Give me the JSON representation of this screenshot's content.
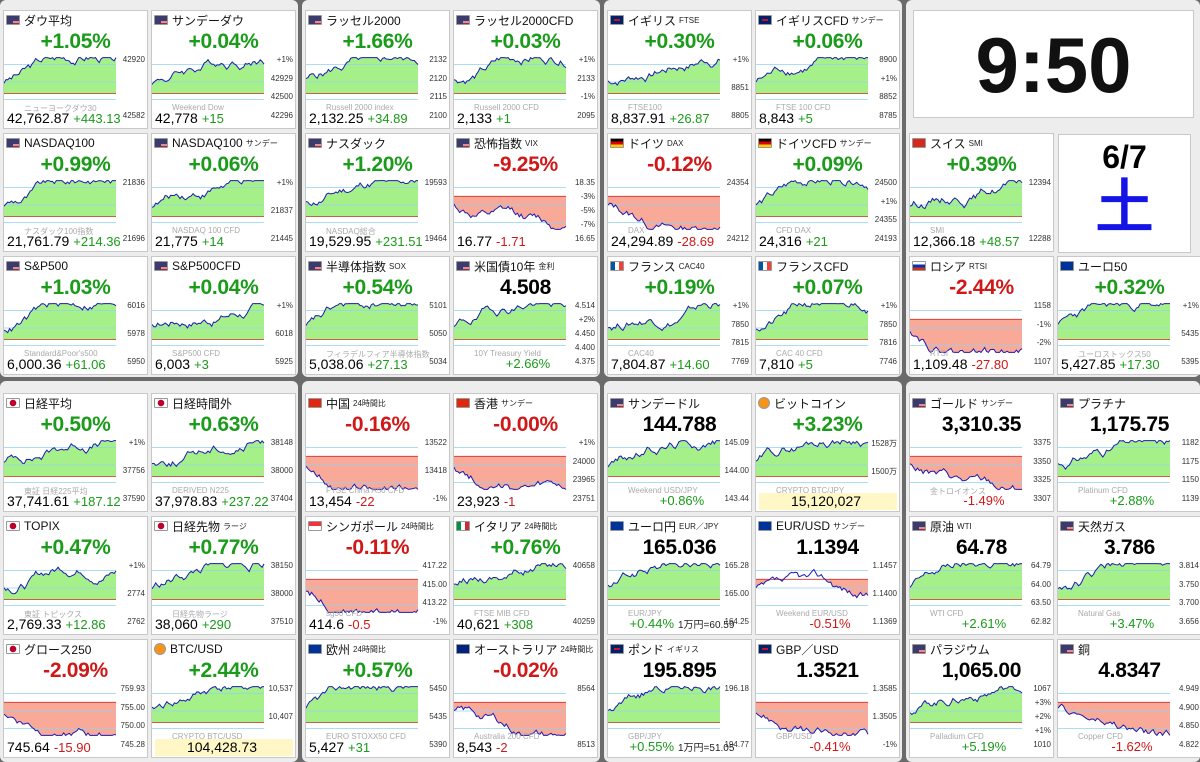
{
  "colors": {
    "up": "#1a9b1a",
    "down": "#d01818",
    "up_fill": "#a6f08a",
    "down_fill": "#f9a998",
    "line": "#1a1ab4",
    "weekday": "#1414e6"
  },
  "clock": {
    "time": "9:50",
    "date": "6/7",
    "weekday": "土"
  },
  "cards": [
    {
      "flag": "us",
      "name": "ダウ平均",
      "sub": "",
      "change": "+1.05%",
      "dir": "up",
      "price": "42,762.87",
      "diff": "+443.13",
      "ticks": [
        "42920",
        "42582"
      ],
      "wm": "ニューヨークダウ30"
    },
    {
      "flag": "us",
      "name": "サンデーダウ",
      "sub": "",
      "change": "+0.04%",
      "dir": "up",
      "price": "42,778",
      "diff": "+15",
      "ticks": [
        "+1%",
        "42929",
        "42500",
        "42296"
      ],
      "wm": "Weekend Dow"
    },
    {
      "flag": "us",
      "name": "ラッセル2000",
      "sub": "",
      "change": "+1.66%",
      "dir": "up",
      "price": "2,132.25",
      "diff": "+34.89",
      "ticks": [
        "2132",
        "2120",
        "2115",
        "2100"
      ],
      "wm": "Russell 2000 index"
    },
    {
      "flag": "us",
      "name": "ラッセル2000CFD",
      "sub": "",
      "change": "+0.03%",
      "dir": "up",
      "price": "2,133",
      "diff": "+1",
      "ticks": [
        "+1%",
        "2133",
        "-1%",
        "2095"
      ],
      "wm": "Russell 2000 CFD"
    },
    {
      "flag": "uk",
      "name": "イギリス",
      "sub": "FTSE",
      "change": "+0.30%",
      "dir": "up",
      "price": "8,837.91",
      "diff": "+26.87",
      "ticks": [
        "+1%",
        "8851",
        "8805"
      ],
      "wm": "FTSE100"
    },
    {
      "flag": "uk",
      "name": "イギリスCFD",
      "sub": "サンデー",
      "change": "+0.06%",
      "dir": "up",
      "price": "8,843",
      "diff": "+5",
      "ticks": [
        "8900",
        "+1%",
        "8852",
        "8785"
      ],
      "wm": "FTSE 100 CFD"
    },
    {
      "flag": "us",
      "name": "NASDAQ100",
      "sub": "",
      "change": "+0.99%",
      "dir": "up",
      "price": "21,761.79",
      "diff": "+214.36",
      "ticks": [
        "21836",
        "21696"
      ],
      "wm": "ナスダック100指数"
    },
    {
      "flag": "us",
      "name": "NASDAQ100",
      "sub": "サンデー",
      "change": "+0.06%",
      "dir": "up",
      "price": "21,775",
      "diff": "+14",
      "ticks": [
        "+1%",
        "21837",
        "21445"
      ],
      "wm": "NASDAQ 100 CFD"
    },
    {
      "flag": "us",
      "name": "ナスダック",
      "sub": "",
      "change": "+1.20%",
      "dir": "up",
      "price": "19,529.95",
      "diff": "+231.51",
      "ticks": [
        "19593",
        "19464"
      ],
      "wm": "NASDAQ総合"
    },
    {
      "flag": "us",
      "name": "恐怖指数",
      "sub": "VIX",
      "change": "-9.25%",
      "dir": "down",
      "price": "16.77",
      "diff": "-1.71",
      "ticks": [
        "18.35",
        "-3%",
        "-5%",
        "-7%",
        "16.65"
      ],
      "wm": ""
    },
    {
      "flag": "de",
      "name": "ドイツ",
      "sub": "DAX",
      "change": "-0.12%",
      "dir": "down",
      "price": "24,294.89",
      "diff": "-28.69",
      "ticks": [
        "24354",
        "24212"
      ],
      "wm": "DAX"
    },
    {
      "flag": "de",
      "name": "ドイツCFD",
      "sub": "サンデー",
      "change": "+0.09%",
      "dir": "up",
      "price": "24,316",
      "diff": "+21",
      "ticks": [
        "24500",
        "+1%",
        "24355",
        "24193"
      ],
      "wm": "CFD DAX"
    },
    {
      "flag": "ch",
      "name": "スイス",
      "sub": "SMI",
      "change": "+0.39%",
      "dir": "up",
      "price": "12,366.18",
      "diff": "+48.57",
      "ticks": [
        "12394",
        "12288"
      ],
      "wm": "SMI"
    },
    {
      "flag": "us",
      "name": "S&P500",
      "sub": "",
      "change": "+1.03%",
      "dir": "up",
      "price": "6,000.36",
      "diff": "+61.06",
      "ticks": [
        "6016",
        "5978",
        "5950"
      ],
      "wm": "Standard&Poor's500"
    },
    {
      "flag": "us",
      "name": "S&P500CFD",
      "sub": "",
      "change": "+0.04%",
      "dir": "up",
      "price": "6,003",
      "diff": "+3",
      "ticks": [
        "+1%",
        "6018",
        "5925"
      ],
      "wm": "S&P500 CFD"
    },
    {
      "flag": "us",
      "name": "半導体指数",
      "sub": "SOX",
      "change": "+0.54%",
      "dir": "up",
      "price": "5,038.06",
      "diff": "+27.13",
      "ticks": [
        "5101",
        "5050",
        "5034"
      ],
      "wm": "フィラデルフィア半導体指数"
    },
    {
      "flag": "us",
      "name": "米国債10年",
      "sub": "金利",
      "change": "4.508",
      "dir": "flat",
      "price": "",
      "diff": "+2.66%",
      "ticks": [
        "4.514",
        "+2%",
        "4.450",
        "4.400",
        "4.375"
      ],
      "wm": "10Y Treasury Yield"
    },
    {
      "flag": "fr",
      "name": "フランス",
      "sub": "CAC40",
      "change": "+0.19%",
      "dir": "up",
      "price": "7,804.87",
      "diff": "+14.60",
      "ticks": [
        "+1%",
        "7850",
        "7815",
        "7769"
      ],
      "wm": "CAC40"
    },
    {
      "flag": "fr",
      "name": "フランスCFD",
      "sub": "",
      "change": "+0.07%",
      "dir": "up",
      "price": "7,810",
      "diff": "+5",
      "ticks": [
        "+1%",
        "7850",
        "7816",
        "7746"
      ],
      "wm": "CAC 40 CFD"
    },
    {
      "flag": "ru",
      "name": "ロシア",
      "sub": "RTSI",
      "change": "-2.44%",
      "dir": "down",
      "price": "1,109.48",
      "diff": "-27.80",
      "ticks": [
        "1158",
        "-1%",
        "-2%",
        "1107"
      ],
      "wm": "RTSI"
    },
    {
      "flag": "eu",
      "name": "ユーロ50",
      "sub": "",
      "change": "+0.32%",
      "dir": "up",
      "price": "5,427.85",
      "diff": "+17.30",
      "ticks": [
        "+1%",
        "5435",
        "5395"
      ],
      "wm": "ユーロストックス50"
    },
    {
      "flag": "jp",
      "name": "日経平均",
      "sub": "",
      "change": "+0.50%",
      "dir": "up",
      "price": "37,741.61",
      "diff": "+187.12",
      "ticks": [
        "+1%",
        "37756",
        "37590"
      ],
      "wm": "東証 日経225平均"
    },
    {
      "flag": "jp",
      "name": "日経時間外",
      "sub": "",
      "change": "+0.63%",
      "dir": "up",
      "price": "37,978.83",
      "diff": "+237.22",
      "ticks": [
        "38148",
        "38000",
        "37404"
      ],
      "wm": "DERIVED N225"
    },
    {
      "flag": "cn",
      "name": "中国",
      "sub": "24時間比",
      "change": "-0.16%",
      "dir": "down",
      "price": "13,454",
      "diff": "-22",
      "ticks": [
        "13522",
        "13418",
        "-1%"
      ],
      "wm": "FTSE China A50 CFD"
    },
    {
      "flag": "hk",
      "name": "香港",
      "sub": "サンデー",
      "change": "-0.00%",
      "dir": "down",
      "price": "23,923",
      "diff": "-1",
      "ticks": [
        "+1%",
        "24000",
        "23965",
        "23751"
      ],
      "wm": ""
    },
    {
      "flag": "us",
      "name": "サンデードル",
      "sub": "",
      "change": "144.788",
      "dir": "flat",
      "price": "",
      "diff": "+0.86%",
      "ticks": [
        "145.09",
        "144.00",
        "143.44"
      ],
      "wm": "Weekend USD/JPY"
    },
    {
      "flag": "btc",
      "name": "ビットコイン",
      "sub": "",
      "change": "+3.23%",
      "dir": "up",
      "price": "15,120,027",
      "diff": "",
      "ticks": [
        "1528万",
        "1500万",
        "1461万"
      ],
      "wm": "CRYPTO BTC/JPY"
    },
    {
      "flag": "us",
      "name": "ゴールド",
      "sub": "サンデー",
      "change": "3,310.35",
      "dir": "flat",
      "price": "",
      "diff": "-1.49%",
      "ticks": [
        "3375",
        "3350",
        "3325",
        "3307"
      ],
      "wm": "金トロイオンス"
    },
    {
      "flag": "us",
      "name": "プラチナ",
      "sub": "",
      "change": "1,175.75",
      "dir": "flat",
      "price": "",
      "diff": "+2.88%",
      "ticks": [
        "1182",
        "1175",
        "1150",
        "1139"
      ],
      "wm": "Platinum CFD"
    },
    {
      "flag": "jp",
      "name": "TOPIX",
      "sub": "",
      "change": "+0.47%",
      "dir": "up",
      "price": "2,769.33",
      "diff": "+12.86",
      "ticks": [
        "+1%",
        "2774",
        "2762"
      ],
      "wm": "東証 トピックス"
    },
    {
      "flag": "jp",
      "name": "日経先物",
      "sub": "ラージ",
      "change": "+0.77%",
      "dir": "up",
      "price": "38,060",
      "diff": "+290",
      "ticks": [
        "38150",
        "38000",
        "37510"
      ],
      "wm": "日経先物ラージ"
    },
    {
      "flag": "sg",
      "name": "シンガポール",
      "sub": "24時間比",
      "change": "-0.11%",
      "dir": "down",
      "price": "414.6",
      "diff": "-0.5",
      "ticks": [
        "417.22",
        "415.00",
        "413.22",
        "-1%"
      ],
      "wm": "sg30 CFD"
    },
    {
      "flag": "it",
      "name": "イタリア",
      "sub": "24時間比",
      "change": "+0.76%",
      "dir": "up",
      "price": "40,621",
      "diff": "+308",
      "ticks": [
        "40658",
        "40259"
      ],
      "wm": "FTSE MIB CFD"
    },
    {
      "flag": "eu",
      "name": "ユーロ円",
      "sub": "EUR／JPY",
      "change": "165.036",
      "dir": "flat",
      "price": "",
      "diff": "+0.44%",
      "ticks": [
        "165.28",
        "165.00",
        "164.25"
      ],
      "wm": "EUR/JPY",
      "fx": "1万円=60.59"
    },
    {
      "flag": "eu",
      "name": "EUR/USD",
      "sub": "サンデー",
      "change": "1.1394",
      "dir": "flat",
      "price": "",
      "diff": "-0.51%",
      "ticks": [
        "1.1457",
        "1.1400",
        "1.1369"
      ],
      "wm": "Weekend EUR/USD"
    },
    {
      "flag": "us",
      "name": "原油",
      "sub": "WTI",
      "change": "64.78",
      "dir": "flat",
      "price": "",
      "diff": "+2.61%",
      "ticks": [
        "64.79",
        "64.00",
        "63.50",
        "62.82"
      ],
      "wm": "WTI CFD"
    },
    {
      "flag": "us",
      "name": "天然ガス",
      "sub": "",
      "change": "3.786",
      "dir": "flat",
      "price": "",
      "diff": "+3.47%",
      "ticks": [
        "3.814",
        "3.750",
        "3.700",
        "3.656"
      ],
      "wm": "Natural Gas"
    },
    {
      "flag": "jp",
      "name": "グロース250",
      "sub": "",
      "change": "-2.09%",
      "dir": "down",
      "price": "745.64",
      "diff": "-15.90",
      "ticks": [
        "759.93",
        "755.00",
        "750.00",
        "745.28"
      ],
      "wm": ""
    },
    {
      "flag": "btc",
      "name": "BTC/USD",
      "sub": "",
      "change": "+2.44%",
      "dir": "up",
      "price": "104,428.73",
      "diff": "",
      "ticks": [
        "10,537",
        "10,407",
        "10,157"
      ],
      "wm": "CRYPTO BTC/USD"
    },
    {
      "flag": "eu",
      "name": "欧州",
      "sub": "24時間比",
      "change": "+0.57%",
      "dir": "up",
      "price": "5,427",
      "diff": "+31",
      "ticks": [
        "5450",
        "5435",
        "5390"
      ],
      "wm": "EURO STOXX50 CFD"
    },
    {
      "flag": "au",
      "name": "オーストラリア",
      "sub": "24時間比",
      "change": "-0.02%",
      "dir": "down",
      "price": "8,543",
      "diff": "-2",
      "ticks": [
        "8564",
        "8513"
      ],
      "wm": "Australia 200 CFD"
    },
    {
      "flag": "uk",
      "name": "ポンド",
      "sub": "イギリス",
      "change": "195.895",
      "dir": "flat",
      "price": "",
      "diff": "+0.55%",
      "ticks": [
        "196.18",
        "194.77"
      ],
      "wm": "GBP/JPY",
      "fx": "1万円=51.05"
    },
    {
      "flag": "uk",
      "name": "GBP／USD",
      "sub": "",
      "change": "1.3521",
      "dir": "flat",
      "price": "",
      "diff": "-0.41%",
      "ticks": [
        "1.3585",
        "1.3505",
        "-1%"
      ],
      "wm": "GBP/USD"
    },
    {
      "flag": "us",
      "name": "パラジウム",
      "sub": "",
      "change": "1,065.00",
      "dir": "flat",
      "price": "",
      "diff": "+5.19%",
      "ticks": [
        "1067",
        "+3%",
        "+2%",
        "+1%",
        "1010"
      ],
      "wm": "Palladium CFD"
    },
    {
      "flag": "us",
      "name": "銅",
      "sub": "",
      "change": "4.8347",
      "dir": "flat",
      "price": "",
      "diff": "-1.62%",
      "ticks": [
        "4.949",
        "4.900",
        "4.850",
        "4.822"
      ],
      "wm": "Copper CFD"
    }
  ]
}
